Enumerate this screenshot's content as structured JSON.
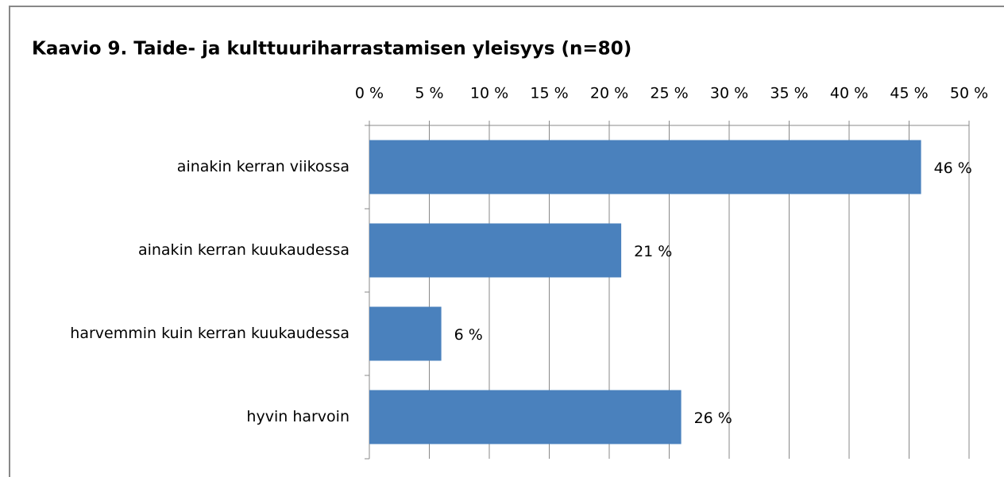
{
  "chart_data": {
    "type": "bar",
    "orientation": "horizontal",
    "title": "Kaavio 9. Taide- ja kulttuuriharrastamisen yleisyys (n=80)",
    "categories": [
      "ainakin kerran viikossa",
      "ainakin kerran kuukaudessa",
      "harvemmin kuin kerran kuukaudessa",
      "hyvin harvoin"
    ],
    "values": [
      46,
      21,
      6,
      26
    ],
    "value_labels": [
      "46 %",
      "21 %",
      "6 %",
      "26 %"
    ],
    "color": "#4a81bd",
    "xlim": [
      0,
      50
    ],
    "xticks": [
      {
        "value": 0,
        "label": "0 %"
      },
      {
        "value": 5,
        "label": "5 %"
      },
      {
        "value": 10,
        "label": "10 %"
      },
      {
        "value": 15,
        "label": "15 %"
      },
      {
        "value": 20,
        "label": "20 %"
      },
      {
        "value": 25,
        "label": "25 %"
      },
      {
        "value": 30,
        "label": "30 %"
      },
      {
        "value": 35,
        "label": "35 %"
      },
      {
        "value": 40,
        "label": "40 %"
      },
      {
        "value": 45,
        "label": "45 %"
      },
      {
        "value": 50,
        "label": "50 %"
      }
    ],
    "grid": true
  }
}
